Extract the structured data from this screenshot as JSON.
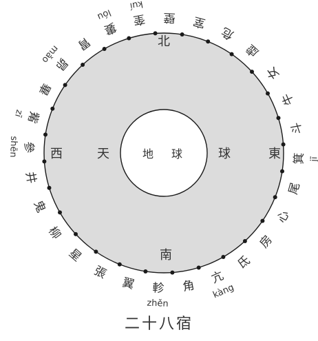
{
  "caption": "二十八宿",
  "diagram": {
    "colors": {
      "ring_fill": "#dcdcdc",
      "stroke": "#1a1a1a",
      "text": "#333333",
      "inner_fill": "#ffffff"
    },
    "directions": {
      "north": "北",
      "south": "南",
      "east": "東",
      "west": "西"
    },
    "sky_label": "天",
    "sky_ball_label": "球",
    "earth_label": "地",
    "earth_ball_label": "球",
    "mansions": [
      {
        "char": "角",
        "pinyin": ""
      },
      {
        "char": "亢",
        "pinyin": "kàng"
      },
      {
        "char": "氐",
        "pinyin": ""
      },
      {
        "char": "房",
        "pinyin": ""
      },
      {
        "char": "心",
        "pinyin": ""
      },
      {
        "char": "尾",
        "pinyin": ""
      },
      {
        "char": "箕",
        "pinyin": "jī"
      },
      {
        "char": "斗",
        "pinyin": ""
      },
      {
        "char": "牛",
        "pinyin": ""
      },
      {
        "char": "女",
        "pinyin": ""
      },
      {
        "char": "虛",
        "pinyin": ""
      },
      {
        "char": "危",
        "pinyin": ""
      },
      {
        "char": "室",
        "pinyin": ""
      },
      {
        "char": "壁",
        "pinyin": ""
      },
      {
        "char": "奎",
        "pinyin": "kuí"
      },
      {
        "char": "婁",
        "pinyin": "lóu"
      },
      {
        "char": "胃",
        "pinyin": ""
      },
      {
        "char": "昴",
        "pinyin": "mǎo"
      },
      {
        "char": "畢",
        "pinyin": ""
      },
      {
        "char": "觜",
        "pinyin": "zī"
      },
      {
        "char": "參",
        "pinyin": "shēn"
      },
      {
        "char": "井",
        "pinyin": ""
      },
      {
        "char": "鬼",
        "pinyin": ""
      },
      {
        "char": "柳",
        "pinyin": ""
      },
      {
        "char": "星",
        "pinyin": ""
      },
      {
        "char": "張",
        "pinyin": ""
      },
      {
        "char": "翼",
        "pinyin": ""
      },
      {
        "char": "軫",
        "pinyin": "zhěn"
      }
    ]
  }
}
